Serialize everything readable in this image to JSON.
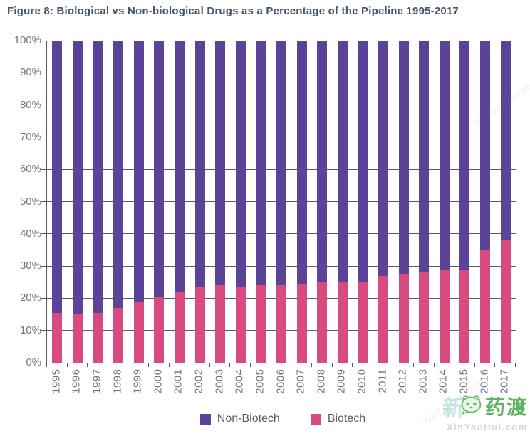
{
  "title": "Figure 8: Biological vs Non-biological Drugs as a Percentage of the Pipeline 1995-2017",
  "chart_data": {
    "type": "bar",
    "stacked": true,
    "title": "Figure 8: Biological vs Non-biological Drugs as a Percentage of the Pipeline 1995-2017",
    "categories": [
      "1995",
      "1996",
      "1997",
      "1998",
      "1999",
      "2000",
      "2001",
      "2002",
      "2003",
      "2004",
      "2005",
      "2006",
      "2007",
      "2008",
      "2009",
      "2010",
      "2011",
      "2012",
      "2013",
      "2014",
      "2015",
      "2016",
      "2017"
    ],
    "series": [
      {
        "name": "Non-Biotech",
        "color": "#5b4397",
        "values": [
          84.5,
          85,
          84.5,
          83,
          81,
          79.5,
          78,
          76.5,
          76,
          76.5,
          76,
          76,
          75.5,
          75,
          75,
          75,
          73,
          72.5,
          72,
          71,
          71,
          65,
          62
        ]
      },
      {
        "name": "Biotech",
        "color": "#d84b80",
        "values": [
          15.5,
          15,
          15.5,
          17,
          19,
          20.5,
          22,
          23.5,
          24,
          23.5,
          24,
          24,
          24.5,
          25,
          25,
          25,
          27,
          27.5,
          28,
          29,
          29,
          35,
          38
        ]
      }
    ],
    "xlabel": "",
    "ylabel": "",
    "ylim": [
      0,
      100
    ],
    "y_ticks": [
      "0%",
      "10%",
      "20%",
      "30%",
      "40%",
      "50%",
      "60%",
      "70%",
      "80%",
      "90%",
      "100%"
    ],
    "grid": true,
    "legend_position": "bottom"
  },
  "legend": {
    "items": [
      {
        "label": "Non-Biotech",
        "color": "#5b4397"
      },
      {
        "label": "Biotech",
        "color": "#d84b80"
      }
    ]
  },
  "watermark": {
    "faint": "新",
    "brand": "药渡",
    "domain": "XinYaoHui.com"
  },
  "colors": {
    "title": "#44566b",
    "axis": "#565c66",
    "tick_labels": "#6e7683",
    "non_biotech": "#5b4397",
    "biotech": "#d84b80",
    "watermark_green": "#5fb35f"
  }
}
